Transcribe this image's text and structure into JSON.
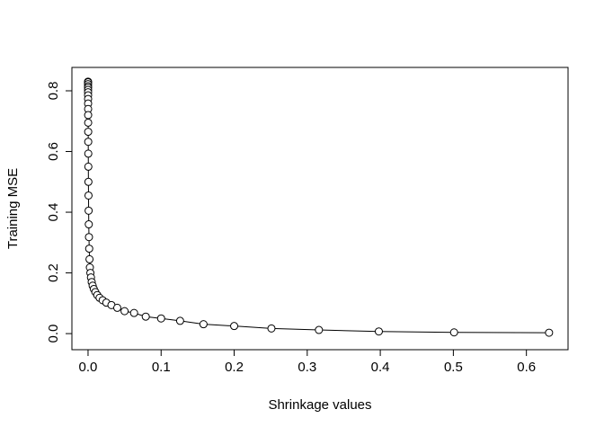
{
  "chart_data": {
    "type": "line",
    "xlabel": "Shrinkage values",
    "ylabel": "Training MSE",
    "x": [
      1e-07,
      1e-06,
      1e-05,
      2e-05,
      2.5e-05,
      3.2e-05,
      4e-05,
      5e-05,
      6.3e-05,
      7.9e-05,
      0.0001,
      0.000126,
      0.00016,
      0.0002,
      0.00025,
      0.00032,
      0.0004,
      0.0005,
      0.00063,
      0.00079,
      0.001,
      0.00126,
      0.00158,
      0.002,
      0.0025,
      0.0032,
      0.004,
      0.005,
      0.0063,
      0.0079,
      0.01,
      0.0126,
      0.0158,
      0.02,
      0.025,
      0.032,
      0.04,
      0.05,
      0.063,
      0.079,
      0.1,
      0.126,
      0.158,
      0.2,
      0.251,
      0.316,
      0.398,
      0.501,
      0.631
    ],
    "values": [
      0.83,
      0.828,
      0.822,
      0.815,
      0.81,
      0.803,
      0.795,
      0.785,
      0.773,
      0.758,
      0.74,
      0.72,
      0.695,
      0.665,
      0.632,
      0.593,
      0.55,
      0.5,
      0.455,
      0.405,
      0.36,
      0.318,
      0.28,
      0.245,
      0.218,
      0.2,
      0.185,
      0.17,
      0.158,
      0.147,
      0.137,
      0.127,
      0.118,
      0.11,
      0.102,
      0.094,
      0.085,
      0.074,
      0.068,
      0.056,
      0.05,
      0.042,
      0.031,
      0.025,
      0.017,
      0.012,
      0.007,
      0.004,
      0.003
    ],
    "color": "#000000",
    "xlim": [
      -0.0221,
      0.657
    ],
    "ylim": [
      -0.053,
      0.877
    ],
    "xticks": [
      {
        "value": 0,
        "label": "0.0"
      },
      0.1,
      0.2,
      0.3,
      0.4,
      0.5,
      0.6
    ],
    "yticks": [
      {
        "value": 0,
        "label": "0.0"
      },
      0.2,
      0.4,
      0.6,
      0.8
    ]
  }
}
